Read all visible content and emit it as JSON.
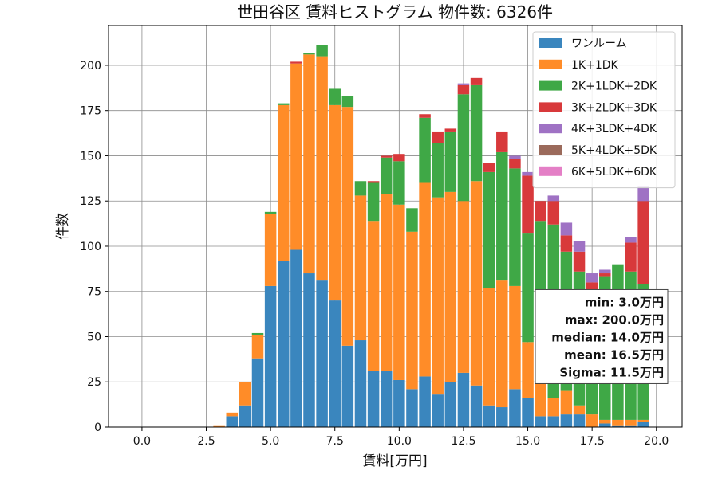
{
  "chart_data": {
    "type": "bar",
    "stacked": true,
    "title": "世田谷区 賃料ヒストグラム 物件数: 6326件",
    "xlabel": "賃料[万円]",
    "ylabel": "件数",
    "xlim": [
      -1.3,
      21.0
    ],
    "ylim": [
      0,
      222
    ],
    "grid": true,
    "legend_position": "top-right",
    "x_ticks": [
      0,
      2.5,
      5,
      7.5,
      10,
      12.5,
      15,
      17.5,
      20
    ],
    "x_tick_labels": [
      "0.0",
      "2.5",
      "5.0",
      "7.5",
      "10.0",
      "12.5",
      "15.0",
      "17.5",
      "20.0"
    ],
    "y_ticks": [
      0,
      25,
      50,
      75,
      100,
      125,
      150,
      175,
      200
    ],
    "y_tick_labels": [
      "0",
      "25",
      "50",
      "75",
      "100",
      "125",
      "150",
      "175",
      "200"
    ],
    "bin_width": 0.5,
    "x": [
      3.0,
      3.5,
      4.0,
      4.5,
      5.0,
      5.5,
      6.0,
      6.5,
      7.0,
      7.5,
      8.0,
      8.5,
      9.0,
      9.5,
      10.0,
      10.5,
      11.0,
      11.5,
      12.0,
      12.5,
      13.0,
      13.5,
      14.0,
      14.5,
      15.0,
      15.5,
      16.0,
      16.5,
      17.0,
      17.5,
      18.0,
      18.5,
      19.0,
      19.5
    ],
    "series": [
      {
        "name": "ワンルーム",
        "color": "#3a86be",
        "values": [
          0,
          6,
          12,
          38,
          78,
          92,
          98,
          85,
          81,
          70,
          45,
          48,
          31,
          31,
          26,
          21,
          28,
          18,
          25,
          30,
          23,
          12,
          11,
          21,
          16,
          6,
          6,
          7,
          7,
          0,
          2,
          1,
          1,
          3
        ]
      },
      {
        "name": "1K+1DK",
        "color": "#ff8c28",
        "values": [
          1,
          2,
          13,
          13,
          40,
          86,
          103,
          121,
          124,
          108,
          132,
          80,
          83,
          98,
          97,
          87,
          107,
          109,
          105,
          95,
          113,
          65,
          70,
          57,
          31,
          23,
          10,
          13,
          5,
          7,
          2,
          3,
          3,
          1
        ]
      },
      {
        "name": "2K+1LDK+2DK",
        "color": "#3fa846",
        "values": [
          0,
          0,
          0,
          1,
          1,
          1,
          0,
          1,
          6,
          9,
          6,
          8,
          21,
          20,
          24,
          13,
          36,
          30,
          33,
          59,
          53,
          64,
          71,
          65,
          60,
          85,
          96,
          77,
          74,
          69,
          79,
          86,
          82,
          75
        ]
      },
      {
        "name": "3K+2LDK+3DK",
        "color": "#d8393b",
        "values": [
          0,
          0,
          0,
          0,
          0,
          0,
          1,
          0,
          0,
          0,
          0,
          0,
          1,
          1,
          4,
          0,
          2,
          6,
          2,
          5,
          4,
          5,
          11,
          5,
          32,
          11,
          13,
          9,
          11,
          4,
          2,
          0,
          16,
          46
        ]
      },
      {
        "name": "4K+3LDK+4DK",
        "color": "#9f72c4",
        "values": [
          0,
          0,
          0,
          0,
          0,
          0,
          0,
          0,
          0,
          0,
          0,
          0,
          0,
          0,
          0,
          0,
          0,
          0,
          0,
          1,
          0,
          0,
          0,
          2,
          2,
          0,
          3,
          7,
          6,
          5,
          2,
          0,
          3,
          8
        ]
      },
      {
        "name": "5K+4LDK+5DK",
        "color": "#9b6a5b",
        "values": [
          0,
          0,
          0,
          0,
          0,
          0,
          0,
          0,
          0,
          0,
          0,
          0,
          0,
          0,
          0,
          0,
          0,
          0,
          0,
          0,
          0,
          0,
          0,
          0,
          0,
          0,
          0,
          0,
          0,
          0,
          0,
          0,
          0,
          0
        ]
      },
      {
        "name": "6K+5LDK+6DK",
        "color": "#e47fc6",
        "values": [
          0,
          0,
          0,
          0,
          0,
          0,
          0,
          0,
          0,
          0,
          0,
          0,
          0,
          0,
          0,
          0,
          0,
          0,
          0,
          0,
          0,
          0,
          0,
          0,
          0,
          0,
          0,
          0,
          0,
          0,
          0,
          0,
          0,
          0
        ]
      }
    ],
    "stats_box": [
      "min: 3.0万円",
      "max: 200.0万円",
      "median: 14.0万円",
      "mean: 16.5万円",
      "Sigma: 11.5万円"
    ]
  }
}
